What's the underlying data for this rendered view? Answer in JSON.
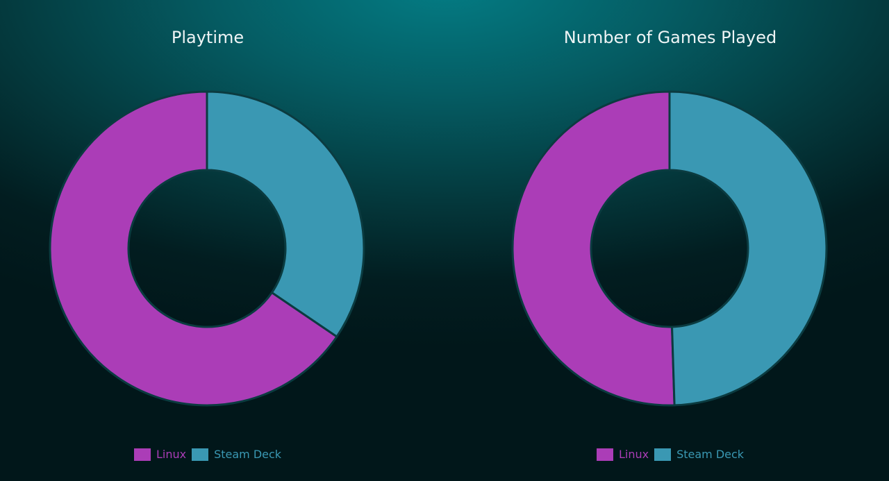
{
  "colors": {
    "linux": "#ab3db7",
    "steam_deck": "#3a98b3",
    "slice_border": "#0b3b40",
    "title_text": "#eef4f5"
  },
  "chart_data": [
    {
      "type": "pie",
      "variant": "donut",
      "title": "Playtime",
      "series": [
        {
          "name": "Linux",
          "value": 65.5,
          "color": "#ab3db7"
        },
        {
          "name": "Steam Deck",
          "value": 34.5,
          "color": "#3a98b3"
        }
      ],
      "start_angle_deg": 90,
      "direction": "counterclockwise",
      "legend": "bottom-center",
      "legend_labels": [
        "Linux",
        "Steam Deck"
      ]
    },
    {
      "type": "pie",
      "variant": "donut",
      "title": "Number of Games Played",
      "series": [
        {
          "name": "Linux",
          "value": 50.5,
          "color": "#ab3db7"
        },
        {
          "name": "Steam Deck",
          "value": 49.5,
          "color": "#3a98b3"
        }
      ],
      "start_angle_deg": 90,
      "direction": "counterclockwise",
      "legend": "bottom-center",
      "legend_labels": [
        "Linux",
        "Steam Deck"
      ]
    }
  ]
}
